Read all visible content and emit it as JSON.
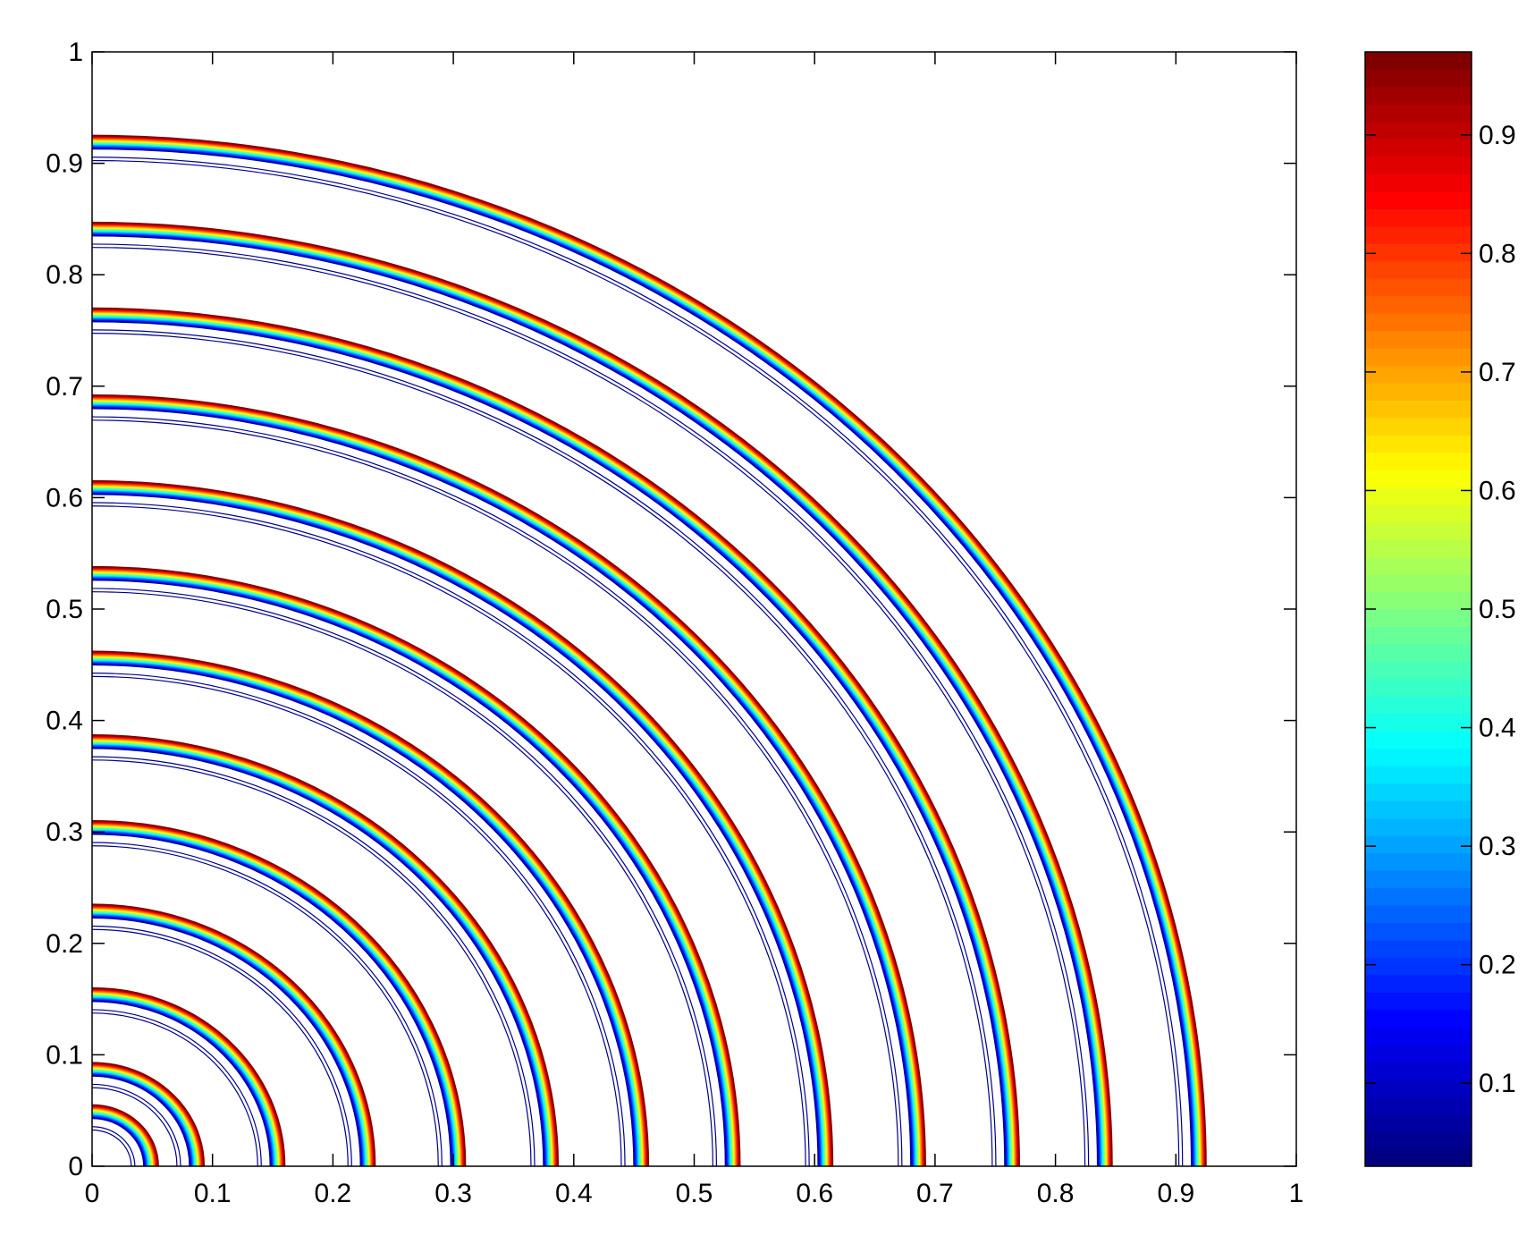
{
  "chart_data": {
    "type": "contour",
    "title": "",
    "xlabel": "",
    "ylabel": "",
    "xlim": [
      0,
      1
    ],
    "ylim": [
      0,
      1
    ],
    "x_ticks": [
      0,
      0.1,
      0.2,
      0.3,
      0.4,
      0.5,
      0.6,
      0.7,
      0.8,
      0.9,
      1
    ],
    "y_ticks": [
      0,
      0.1,
      0.2,
      0.3,
      0.4,
      0.5,
      0.6,
      0.7,
      0.8,
      0.9,
      1
    ],
    "x_tick_labels": [
      "0",
      "0.1",
      "0.2",
      "0.3",
      "0.4",
      "0.5",
      "0.6",
      "0.7",
      "0.8",
      "0.9",
      "1"
    ],
    "y_tick_labels": [
      "0",
      "0.1",
      "0.2",
      "0.3",
      "0.4",
      "0.5",
      "0.6",
      "0.7",
      "0.8",
      "0.9",
      "1"
    ],
    "grid": false,
    "colormap": "jet",
    "contour_levels": 30,
    "front_radii": [
      0.055,
      0.093,
      0.16,
      0.235,
      0.31,
      0.387,
      0.462,
      0.538,
      0.615,
      0.692,
      0.77,
      0.847,
      0.925
    ],
    "front_width": 0.012,
    "colorbar": {
      "range": [
        0.03,
        0.97
      ],
      "ticks": [
        0.1,
        0.2,
        0.3,
        0.4,
        0.5,
        0.6,
        0.7,
        0.8,
        0.9
      ],
      "tick_labels": [
        "0.1",
        "0.2",
        "0.3",
        "0.4",
        "0.5",
        "0.6",
        "0.7",
        "0.8",
        "0.9"
      ],
      "position": "right"
    }
  }
}
